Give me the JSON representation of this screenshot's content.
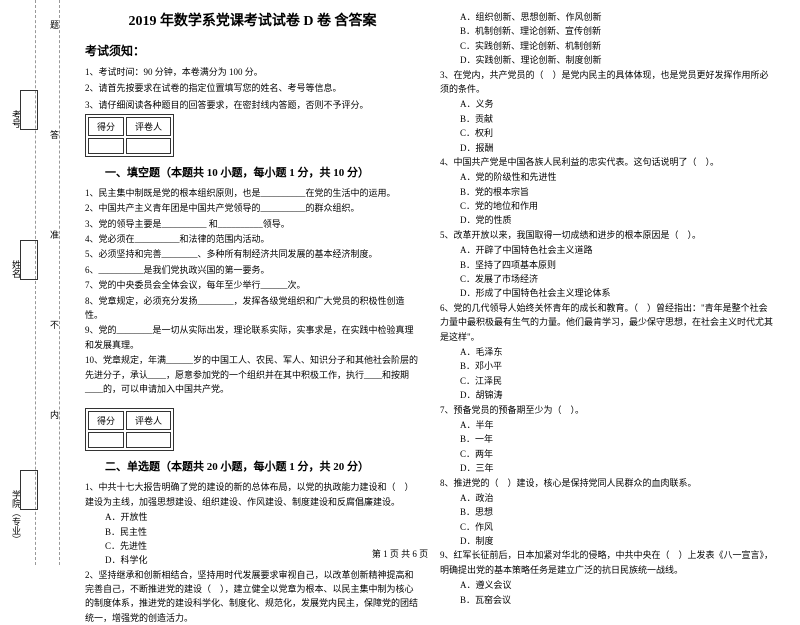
{
  "binding": {
    "marks": [
      "题",
      "答",
      "准",
      "不",
      "内",
      "线"
    ],
    "labels": [
      "考号",
      "姓名",
      "学院（专业）"
    ],
    "seal": "封"
  },
  "header": {
    "title": "2019 年数学系党课考试试卷 D 卷 含答案",
    "notice_h": "考试须知：",
    "notice1": "1、考试时间：90 分钟，本卷满分为 100 分。",
    "notice2": "2、请首先按要求在试卷的指定位置填写您的姓名、考号等信息。",
    "notice3": "3、请仔细阅读各种题目的回答要求，在密封线内答题，否则不予评分。"
  },
  "scorebox": {
    "c1": "得分",
    "c2": "评卷人"
  },
  "section1": {
    "title": "一、填空题（本题共 10 小题，每小题 1 分，共 10 分）",
    "q1": "1、民主集中制既是党的根本组织原则，也是__________在党的生活中的运用。",
    "q2": "2、中国共产主义青年团是中国共产党领导的__________的群众组织。",
    "q3": "3、党的领导主要是__________ 和__________领导。",
    "q4": "4、党必须在__________和法律的范围内活动。",
    "q5": "5、必须坚持和完善________、多种所有制经济共同发展的基本经济制度。",
    "q6": "6、__________是我们党执政兴国的第一要务。",
    "q7": "7、党的中央委员会全体会议，每年至少举行______次。",
    "q8": "8、党章规定，必须充分发扬________，发挥各级党组织和广大党员的积极性创造性。",
    "q9": "9、党的________是一切从实际出发，理论联系实际，实事求是，在实践中检验真理和发展真理。",
    "q10": "10、党章规定，年满______岁的中国工人、农民、军人、知识分子和其他社会阶层的先进分子，承认____，愿意参加党的一个组织并在其中积极工作，执行____和按期____的，可以申请加入中国共产党。"
  },
  "section2": {
    "title": "二、单选题（本题共 20 小题，每小题 1 分，共 20 分）",
    "q1": "1、中共十七大报告明确了党的建设的新的总体布局，以党的执政能力建设和（　）建设为主线，加强思想建设、组织建设、作风建设、制度建设和反腐倡廉建设。",
    "q1a": "A．开放性",
    "q1b": "B．民主性",
    "q1c": "C．先进性",
    "q1d": "D．科学化",
    "q2": "2、坚持继承和创新相结合，坚持用时代发展要求审视自己，以改革创新精神提高和完善自己，不断推进党的建设（　），建立健全以党章为根本、以民主集中制为核心的制度体系，推进党的建设科学化、制度化、规范化，发展党内民主，保障党的团结统一，增强党的创造活力。",
    "q2a": "A．组织创新、思想创新、作风创新",
    "q2b": "B．机制创新、理论创新、宣传创新",
    "q2c": "C．实践创新、理论创新、机制创新",
    "q2d": "D．实践创新、理论创新、制度创新",
    "q3": "3、在党内，共产党员的（　）是党内民主的具体体现，也是党员更好发挥作用所必须的条件。",
    "q3a": "A．义务",
    "q3b": "B．贡献",
    "q3c": "C．权利",
    "q3d": "D．报酬",
    "q4": "4、中国共产党是中国各族人民利益的忠实代表。这句话说明了（　）。",
    "q4a": "A．党的阶级性和先进性",
    "q4b": "B．党的根本宗旨",
    "q4c": "C．党的地位和作用",
    "q4d": "D．党的性质",
    "q5": "5、改革开放以来，我国取得一切成绩和进步的根本原因是（　）。",
    "q5a": "A．开辟了中国特色社会主义道路",
    "q5b": "B．坚持了四项基本原则",
    "q5c": "C．发展了市场经济",
    "q5d": "D．形成了中国特色社会主义理论体系",
    "q6": "6、党的几代领导人始终关怀青年的成长和教育。（　）曾经指出：\"青年是整个社会力量中最积极最有生气的力量。他们最肯学习，最少保守思想，在社会主义时代尤其是这样\"。",
    "q6a": "A．毛泽东",
    "q6b": "B．邓小平",
    "q6c": "C．江泽民",
    "q6d": "D．胡锦涛",
    "q7": "7、预备党员的预备期至少为（　）。",
    "q7a": "A．半年",
    "q7b": "B．一年",
    "q7c": "C．两年",
    "q7d": "D．三年",
    "q8": "8、推进党的（　）建设，核心是保持党同人民群众的血肉联系。",
    "q8a": "A．政治",
    "q8b": "B．思想",
    "q8c": "C．作风",
    "q8d": "D．制度",
    "q9": "9、红军长征前后，日本加紧对华北的侵略，中共中央在（　）上发表《八一宣言》，明确提出党的基本策略任务是建立广泛的抗日民族统一战线。",
    "q9a": "A．遵义会议",
    "q9b": "B．瓦窑会议"
  },
  "footer": "第 1 页 共 6 页"
}
